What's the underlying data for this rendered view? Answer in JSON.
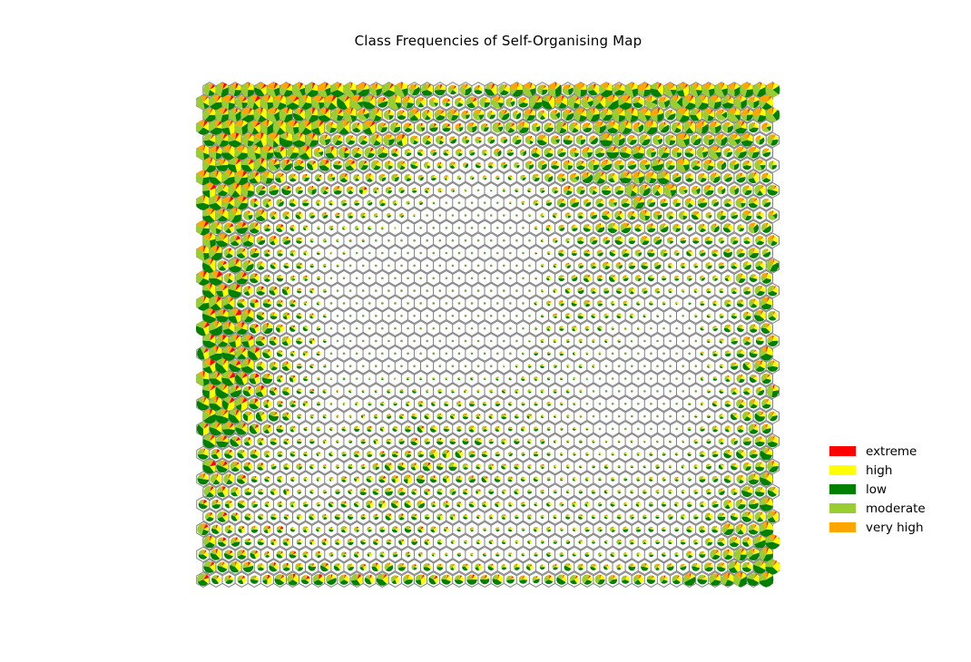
{
  "chart_data": {
    "type": "pie-grid",
    "title": "Class Frequencies of Self-Organising Map",
    "grid": false,
    "axes_visible": false,
    "legend_position": "right",
    "som_grid": {
      "rows": 40,
      "cols": 45,
      "topology": "hexagonal",
      "cell_border_color": "#808080"
    },
    "classes": [
      {
        "name": "extreme",
        "color": "#ff0000"
      },
      {
        "name": "high",
        "color": "#ffff00"
      },
      {
        "name": "low",
        "color": "#008000"
      },
      {
        "name": "moderate",
        "color": "#9acd32"
      },
      {
        "name": "very high",
        "color": "#ffa500"
      }
    ]
  }
}
